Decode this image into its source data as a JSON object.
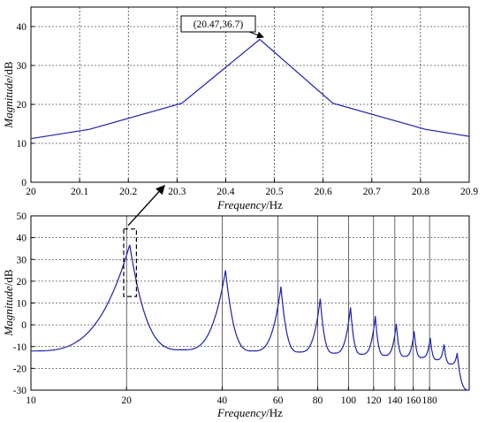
{
  "chart_data": [
    {
      "type": "line",
      "xlabel": {
        "var": "Frequency",
        "unit": "/Hz"
      },
      "ylabel": {
        "var": "Magnitude",
        "unit": "/dB"
      },
      "xlim": [
        20,
        20.9
      ],
      "ylim": [
        0,
        45
      ],
      "xticks": [
        20,
        20.1,
        20.2,
        20.3,
        20.4,
        20.5,
        20.6,
        20.7,
        20.8,
        20.9
      ],
      "xtick_labels": [
        "20",
        "20.1",
        "20.2",
        "20.3",
        "20.4",
        "20.5",
        "20.6",
        "20.7",
        "20.8",
        "20.9"
      ],
      "yticks": [
        0,
        10,
        20,
        30,
        40
      ],
      "ytick_labels": [
        "0",
        "10",
        "20",
        "30",
        "40"
      ],
      "grid": true,
      "series": [
        {
          "color": "#1f1fb4",
          "x": [
            20.0,
            20.12,
            20.31,
            20.47,
            20.62,
            20.81,
            20.9
          ],
          "y": [
            11.2,
            13.6,
            20.3,
            36.7,
            20.3,
            13.6,
            11.8
          ]
        }
      ],
      "annotation": {
        "text": "(20.47,36.7)",
        "x": 20.47,
        "y": 36.7
      }
    },
    {
      "type": "line",
      "xscale": "log",
      "xlabel": {
        "var": "Frequency",
        "unit": "/Hz"
      },
      "ylabel": {
        "var": "Magnitude",
        "unit": "/dB"
      },
      "xlim": [
        10,
        240
      ],
      "ylim": [
        -30,
        50
      ],
      "xticks": [
        10,
        20,
        40,
        60,
        80,
        100,
        120,
        140,
        160,
        180
      ],
      "xtick_labels": [
        "10",
        "20",
        "40",
        "60",
        "80",
        "100",
        "120",
        "140",
        "160",
        "180"
      ],
      "yticks": [
        -30,
        -20,
        -10,
        0,
        10,
        20,
        30,
        40,
        50
      ],
      "ytick_labels": [
        "-30",
        "-20",
        "-10",
        "0",
        "10",
        "20",
        "30",
        "40",
        "50"
      ],
      "grid": true,
      "series": [
        {
          "color": "#1f1fb4",
          "peaks_hz": [
            20.47,
            41,
            61.3,
            81.5,
            101.5,
            121.5,
            141.5,
            161,
            181,
            200,
            220
          ],
          "peaks_db": [
            36.7,
            25,
            17.5,
            12,
            8,
            4,
            0.5,
            -3,
            -6,
            -9,
            -13
          ],
          "valleys_hz": [
            10,
            30,
            50,
            70,
            90,
            110,
            130,
            150,
            170,
            190,
            210,
            240
          ],
          "valleys_db": [
            -12,
            -11.5,
            -12,
            -12.5,
            -13,
            -13.5,
            -14,
            -14.5,
            -15,
            -16,
            -18,
            -30
          ]
        }
      ],
      "highlight_box": {
        "x": [
          19.6,
          21.5
        ],
        "y": [
          13,
          44
        ]
      }
    }
  ]
}
